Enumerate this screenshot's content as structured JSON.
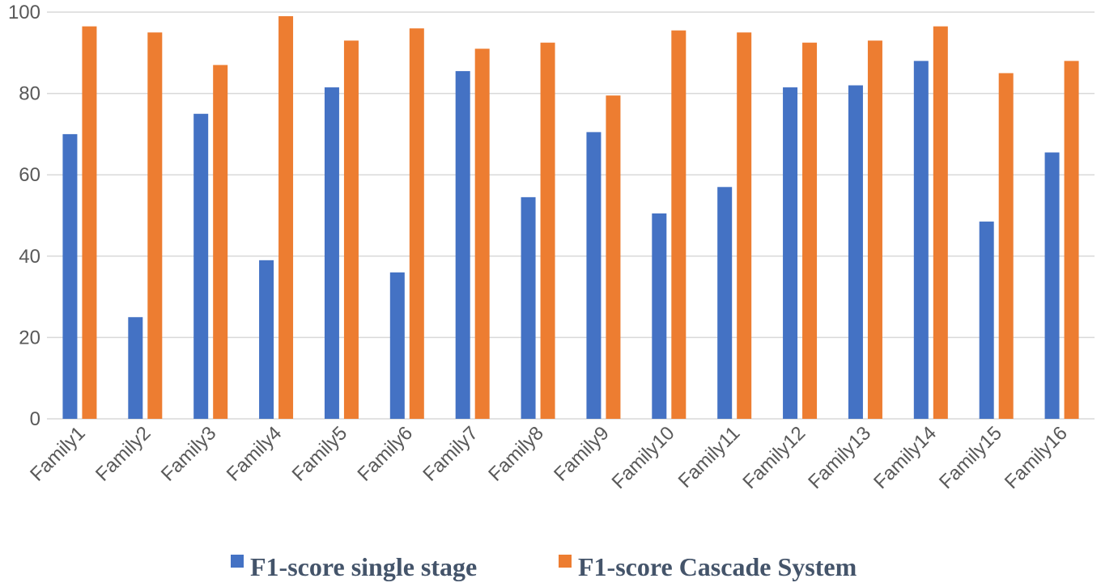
{
  "chart_data": {
    "type": "bar",
    "title": "",
    "xlabel": "",
    "ylabel": "",
    "ylim": [
      0,
      100
    ],
    "yticks": [
      0,
      20,
      40,
      60,
      80,
      100
    ],
    "grid": true,
    "legend_position": "bottom",
    "categories": [
      "Family1",
      "Family2",
      "Family3",
      "Family4",
      "Family5",
      "Family6",
      "Family7",
      "Family8",
      "Family9",
      "Family10",
      "Family11",
      "Family12",
      "Family13",
      "Family14",
      "Family15",
      "Family16"
    ],
    "series": [
      {
        "name": "F1-score single stage",
        "color": "#4472c4",
        "values": [
          70,
          25,
          75,
          39,
          81.5,
          36,
          85.5,
          54.5,
          70.5,
          50.5,
          57,
          81.5,
          82,
          88,
          48.5,
          65.5
        ]
      },
      {
        "name": "F1-score Cascade System",
        "color": "#ed7d31",
        "values": [
          96.5,
          95,
          87,
          99,
          93,
          96,
          91,
          92.5,
          79.5,
          95.5,
          95,
          92.5,
          93,
          96.5,
          85,
          88
        ]
      }
    ]
  }
}
